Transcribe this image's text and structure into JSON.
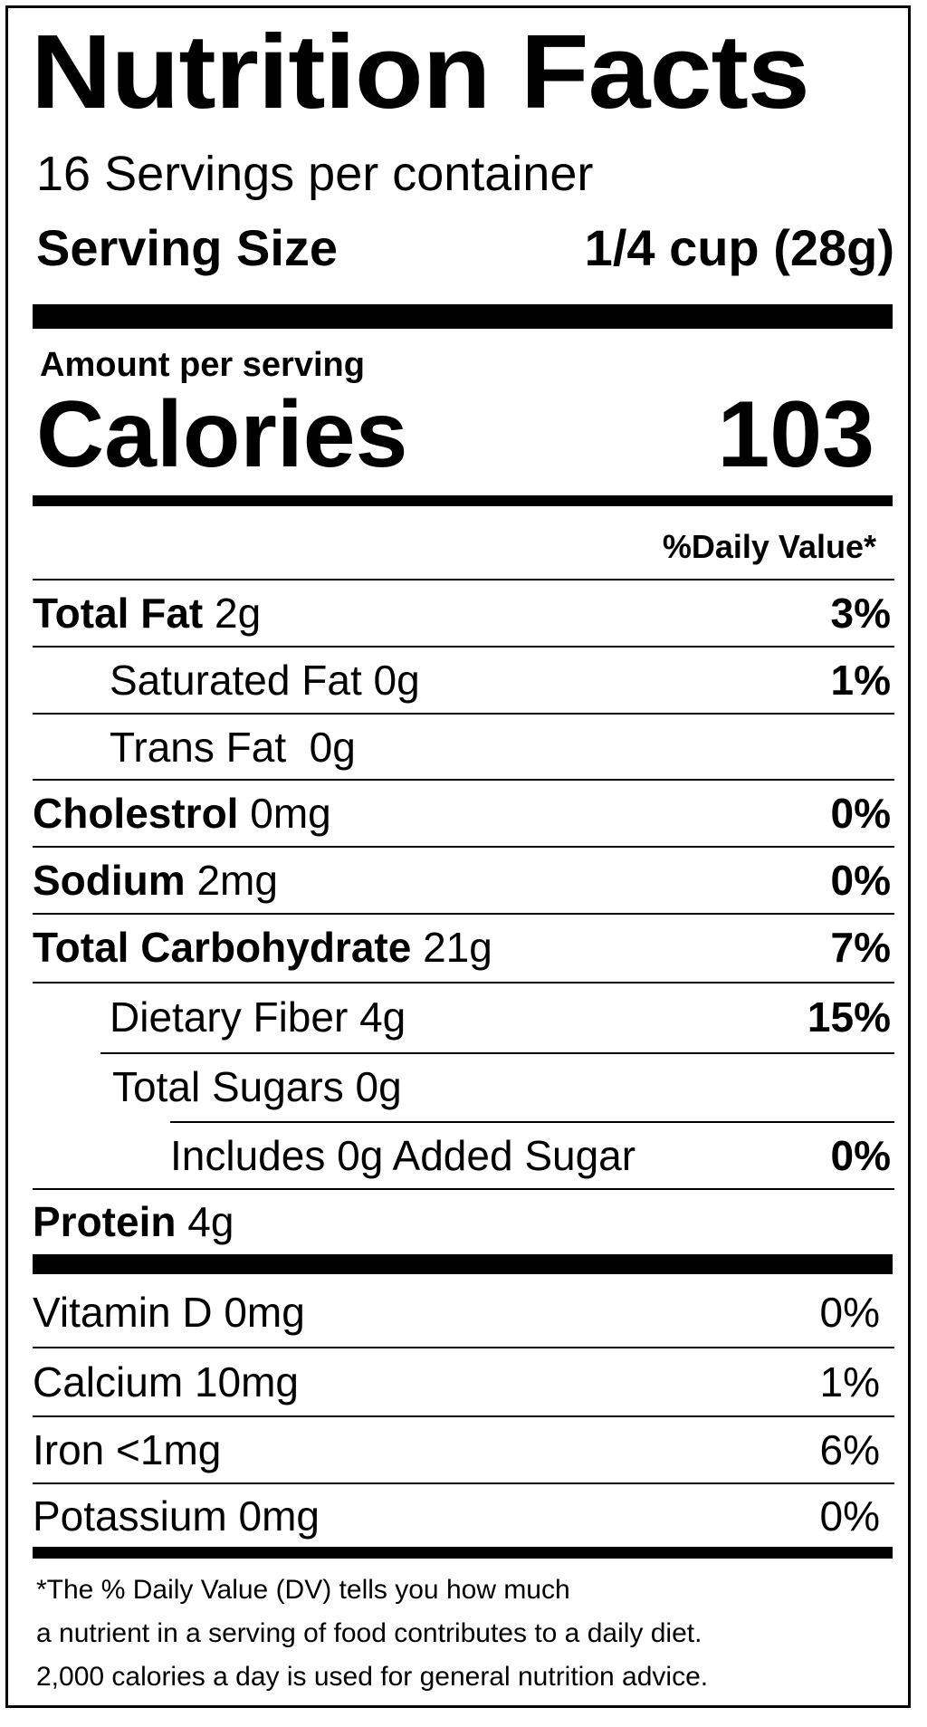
{
  "title": "Nutrition Facts",
  "servings_per_container": "16 Servings per container",
  "serving_size": {
    "label": "Serving Size",
    "value": "1/4 cup (28g)"
  },
  "amount_per_serving": "Amount per serving",
  "calories": {
    "label": "Calories",
    "value": "103"
  },
  "daily_value_header": "%Daily Value*",
  "nutrients": [
    {
      "name": "Total Fat",
      "amount": "2g",
      "dv": "3%"
    },
    {
      "name": "Saturated Fat",
      "amount": "0g",
      "dv": "1%"
    },
    {
      "name": "Trans Fat",
      "amount": " 0g",
      "dv": ""
    },
    {
      "name": "Cholestrol",
      "amount": "0mg",
      "dv": "0%"
    },
    {
      "name": "Sodium",
      "amount": "2mg",
      "dv": "0%"
    },
    {
      "name": "Total Carbohydrate",
      "amount": "21g",
      "dv": "7%"
    },
    {
      "name": "Dietary Fiber",
      "amount": "4g",
      "dv": "15%"
    },
    {
      "name": "Total Sugars",
      "amount": "0g",
      "dv": ""
    },
    {
      "name": "Includes 0g Added Sugar",
      "amount": "",
      "dv": "0%"
    },
    {
      "name": "Protein",
      "amount": "4g",
      "dv": ""
    }
  ],
  "vitamins": [
    {
      "name": "Vitamin D",
      "amount": "0mg",
      "dv": "0%"
    },
    {
      "name": "Calcium",
      "amount": "10mg",
      "dv": "1%"
    },
    {
      "name": "Iron",
      "amount": "<1mg",
      "dv": "6%"
    },
    {
      "name": "Potassium",
      "amount": "0mg",
      "dv": "0%"
    }
  ],
  "footnote": [
    "*The % Daily Value (DV) tells you how much",
    "a nutrient in a serving of food contributes to a daily diet.",
    "2,000 calories a day is used for general nutrition advice."
  ]
}
